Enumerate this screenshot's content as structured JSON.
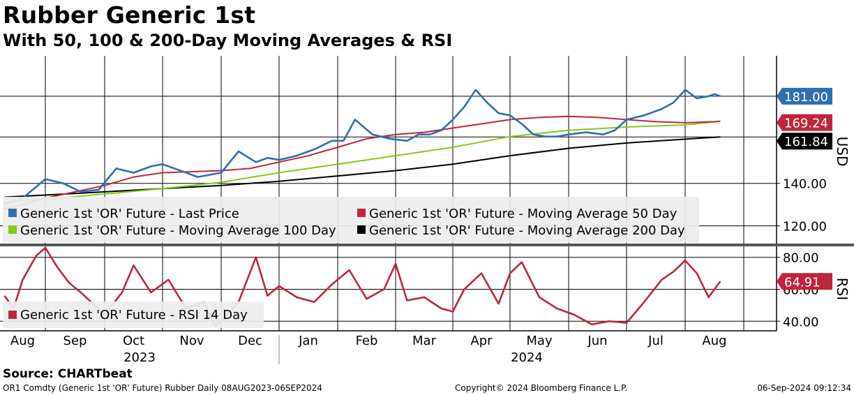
{
  "title": "Rubber Generic 1st",
  "subtitle": "With 50, 100 & 200-Day Moving Averages & RSI",
  "source": "Source: CHARTbeat",
  "footer": {
    "left": "OR1 Comdty (Generic 1st 'OR' Future) Rubber  Daily 08AUG2023-06SEP2024",
    "center": "Copyright© 2024 Bloomberg Finance L.P.",
    "right": "06-Sep-2024 09:12:34"
  },
  "colors": {
    "price": "#2f6eb0",
    "ma50": "#c0253b",
    "ma100": "#7fcc1a",
    "ma200": "#000000",
    "rsi": "#c0253b"
  },
  "chart_data": [
    {
      "type": "line",
      "ylabel": "USD",
      "ylim": [
        112,
        200
      ],
      "yticks": [
        "120.00",
        "140.00"
      ],
      "grid": true,
      "x_months": [
        "Aug",
        "Sep",
        "Oct",
        "Nov",
        "Dec",
        "Jan",
        "Feb",
        "Mar",
        "Apr",
        "May",
        "Jun",
        "Jul",
        "Aug"
      ],
      "x_years": [
        "2023",
        "2024"
      ],
      "legend": [
        "Generic 1st 'OR' Future - Last Price",
        "Generic 1st 'OR' Future - Moving Average 50 Day",
        "Generic 1st 'OR' Future - Moving Average 100 Day",
        "Generic 1st 'OR' Future - Moving Average 200 Day"
      ],
      "last_value_labels": [
        "181.00",
        "169.24",
        "161.84"
      ],
      "series": [
        {
          "name": "Last Price",
          "color": "price",
          "x": [
            0.1,
            0.5,
            1.0,
            1.3,
            1.6,
            1.9,
            2.2,
            2.5,
            2.8,
            3.0,
            3.2,
            3.6,
            4.0,
            4.3,
            4.6,
            4.8,
            5.0,
            5.3,
            5.6,
            5.9,
            6.1,
            6.3,
            6.6,
            6.9,
            7.2,
            7.4,
            7.6,
            7.8,
            8.0,
            8.2,
            8.4,
            8.6,
            8.8,
            9.0,
            9.2,
            9.4,
            9.6,
            9.8,
            10.0,
            10.3,
            10.6,
            10.8,
            11.0,
            11.3,
            11.6,
            11.8,
            12.0,
            12.2,
            12.4,
            12.5,
            12.6
          ],
          "values": [
            130,
            133,
            142,
            140,
            136,
            137,
            147,
            145,
            148,
            149,
            147,
            143,
            145,
            155,
            150,
            152,
            151,
            153,
            156,
            160,
            160,
            170,
            163,
            161,
            160,
            163,
            163,
            165,
            170,
            176,
            184,
            178,
            173,
            172,
            168,
            163,
            162,
            162,
            163,
            164,
            163,
            165,
            170,
            172,
            175,
            178,
            184,
            180,
            181,
            182,
            181
          ]
        },
        {
          "name": "Moving Average 50 Day",
          "color": "ma50",
          "x": [
            0.1,
            0.5,
            1.0,
            1.5,
            2.0,
            2.5,
            3.0,
            3.5,
            4.0,
            4.5,
            5.0,
            5.5,
            6.0,
            6.5,
            7.0,
            7.5,
            8.0,
            8.5,
            9.0,
            9.5,
            10.0,
            10.5,
            11.0,
            11.5,
            12.0,
            12.5,
            12.6
          ],
          "values": [
            128,
            130,
            133,
            136,
            139,
            143,
            145,
            145.5,
            146,
            147,
            150,
            153,
            157,
            161,
            163,
            164,
            166,
            168,
            170,
            171,
            171.5,
            171,
            170,
            169,
            168.5,
            169,
            169.24
          ]
        },
        {
          "name": "Moving Average 100 Day",
          "color": "ma100",
          "x": [
            0.1,
            1.0,
            2.0,
            3.0,
            4.0,
            5.0,
            6.0,
            7.0,
            8.0,
            9.0,
            10.0,
            11.0,
            12.0,
            12.6
          ],
          "values": [
            131,
            132.5,
            135,
            137.5,
            140.5,
            145,
            149,
            153,
            157,
            162,
            165,
            166.5,
            167.5,
            169.24
          ]
        },
        {
          "name": "Moving Average 200 Day",
          "color": "ma200",
          "x": [
            0.1,
            1.0,
            2.0,
            3.0,
            4.0,
            5.0,
            6.0,
            7.0,
            8.0,
            9.0,
            10.0,
            11.0,
            12.0,
            12.6
          ],
          "values": [
            133.5,
            134.5,
            136,
            137.5,
            139,
            141,
            143.5,
            146,
            149,
            153,
            156.5,
            159,
            160.8,
            161.84
          ]
        }
      ]
    },
    {
      "type": "line",
      "ylabel": "RSI",
      "ylim": [
        34,
        86
      ],
      "yticks": [
        "40.00",
        "60.00",
        "80.00"
      ],
      "legend": [
        "Generic 1st 'OR' Future - RSI 14 Day"
      ],
      "last_value_labels": [
        "64.91"
      ],
      "series": [
        {
          "name": "RSI 14 Day",
          "color": "rsi",
          "x": [
            0.1,
            0.3,
            0.5,
            0.8,
            1.0,
            1.2,
            1.4,
            1.6,
            2.0,
            2.3,
            2.5,
            2.8,
            3.1,
            3.4,
            3.7,
            3.9,
            4.1,
            4.3,
            4.6,
            4.8,
            5.0,
            5.3,
            5.6,
            5.9,
            6.2,
            6.5,
            6.8,
            7.0,
            7.2,
            7.5,
            7.8,
            8.0,
            8.2,
            8.5,
            8.8,
            9.0,
            9.2,
            9.5,
            9.8,
            10.1,
            10.4,
            10.7,
            11.0,
            11.3,
            11.6,
            11.8,
            12.0,
            12.2,
            12.4,
            12.6
          ],
          "values": [
            56,
            48,
            66,
            81,
            88,
            74,
            64,
            58,
            44,
            58,
            75,
            58,
            66,
            48,
            52,
            37,
            44,
            52,
            80,
            56,
            62,
            55,
            52,
            63,
            72,
            54,
            60,
            76,
            53,
            55,
            48,
            46,
            60,
            70,
            51,
            70,
            77,
            55,
            48,
            44,
            38,
            40,
            39,
            52,
            66,
            71,
            78,
            70,
            55,
            65
          ]
        }
      ]
    }
  ]
}
